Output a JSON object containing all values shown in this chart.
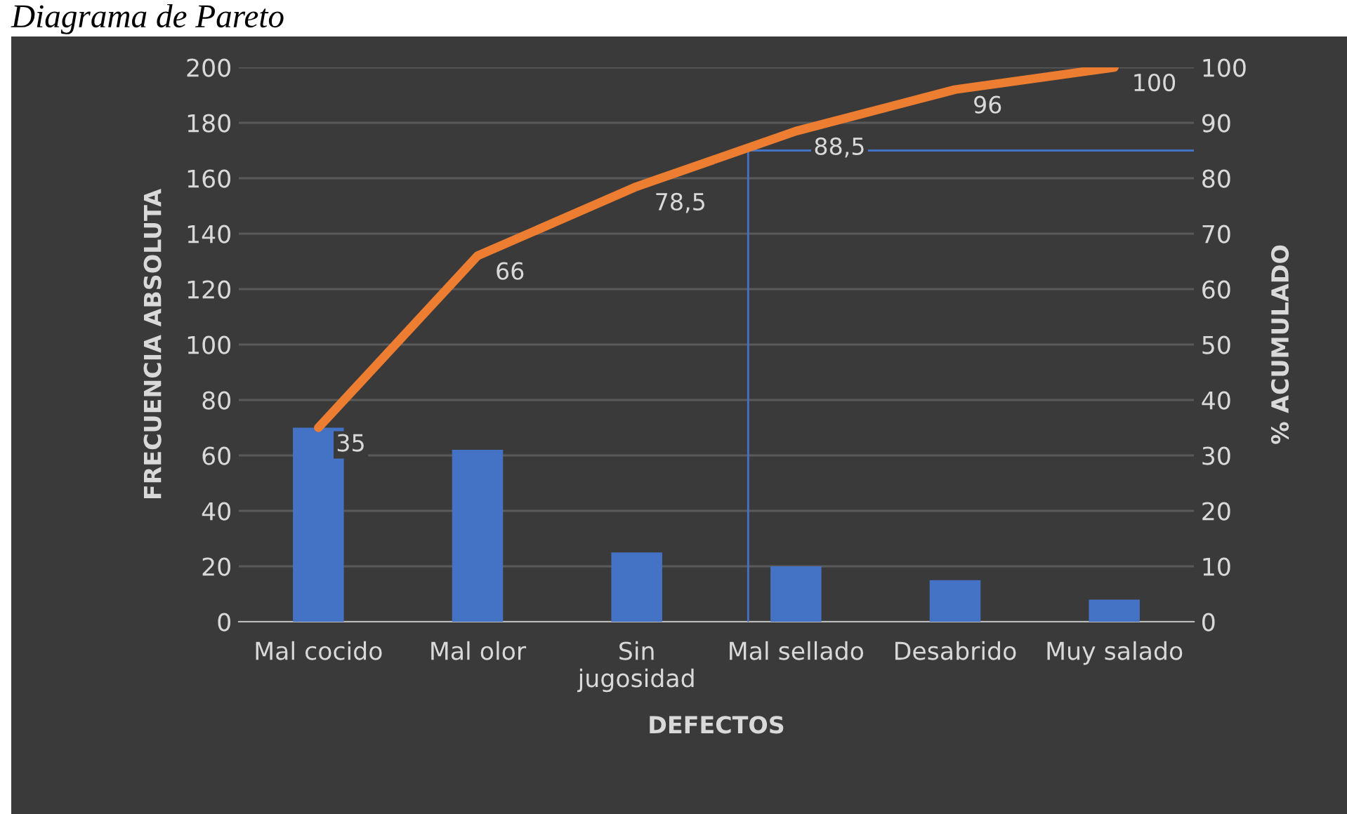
{
  "chart_data": {
    "type": "bar",
    "title": "Diagrama de Pareto",
    "xlabel": "DEFECTOS",
    "ylabel": "FRECUENCIA ABSOLUTA",
    "y2label": "% ACUMULADO",
    "categories": [
      "Mal cocido",
      "Mal olor",
      "Sin\njugosidad",
      "Mal sellado",
      "Desabrido",
      "Muy salado"
    ],
    "series": [
      {
        "color": "#4472c4",
        "values": [
          70,
          62,
          25,
          20,
          15,
          8
        ]
      },
      {
        "type": "line",
        "axis": "y2",
        "color": "#ed7d31",
        "values": [
          35,
          66,
          78.5,
          88.5,
          96,
          100
        ],
        "value_labels": [
          "35",
          "66",
          "78,5",
          "88,5",
          "96",
          "100"
        ]
      }
    ],
    "ylim": [
      0,
      200
    ],
    "yticks": [
      0,
      20,
      40,
      60,
      80,
      100,
      120,
      140,
      160,
      180,
      200
    ],
    "y2lim": [
      0,
      100
    ],
    "y2ticks": [
      0,
      10,
      20,
      30,
      40,
      50,
      60,
      70,
      80,
      90,
      100
    ],
    "ref_lines": [
      {
        "axis": "y2",
        "value": 85,
        "color": "#4472c4"
      }
    ],
    "grid": "y",
    "legend": false,
    "marker": "none",
    "line_style": "solid"
  }
}
